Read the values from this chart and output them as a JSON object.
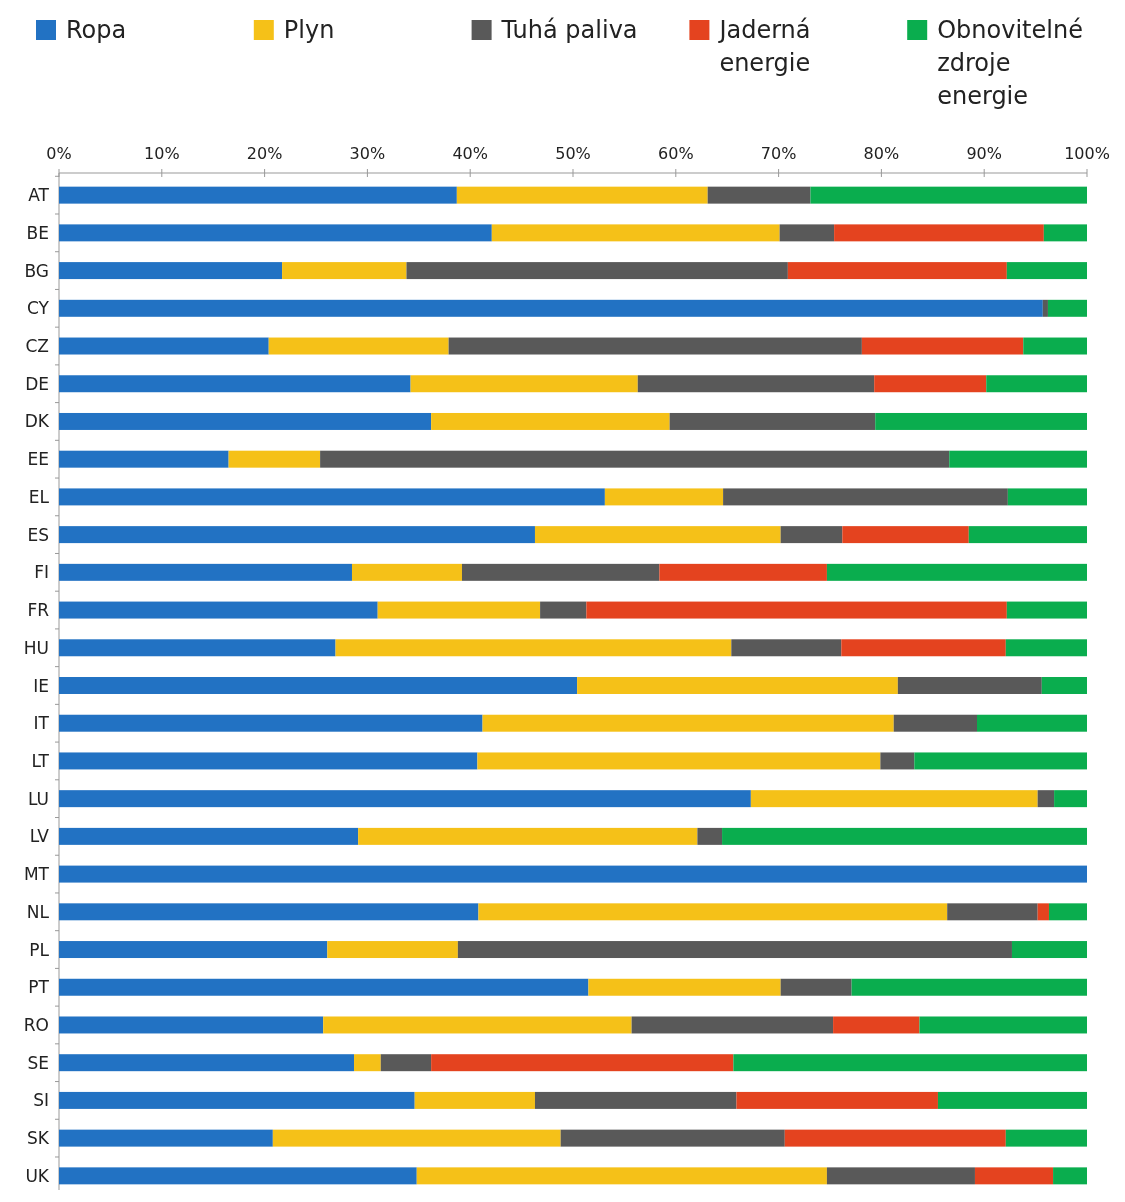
{
  "chart_data": {
    "type": "bar",
    "orientation": "horizontal",
    "stacked": true,
    "legend": "top",
    "grid": false,
    "categories": [
      "AT",
      "BE",
      "BG",
      "CY",
      "CZ",
      "DE",
      "DK",
      "EE",
      "EL",
      "ES",
      "FI",
      "FR",
      "HU",
      "IE",
      "IT",
      "LT",
      "LU",
      "LV",
      "MT",
      "NL",
      "PL",
      "PT",
      "RO",
      "SE",
      "SI",
      "SK",
      "UK"
    ],
    "xlim": [
      0,
      100
    ],
    "xticks": [
      {
        "value": 0,
        "label": "0%"
      },
      {
        "value": 10,
        "label": "10%"
      },
      {
        "value": 20,
        "label": "20%"
      },
      {
        "value": 30,
        "label": "30%"
      },
      {
        "value": 40,
        "label": "40%"
      },
      {
        "value": 50,
        "label": "50%"
      },
      {
        "value": 60,
        "label": "60%"
      },
      {
        "value": 70,
        "label": "70%"
      },
      {
        "value": 80,
        "label": "80%"
      },
      {
        "value": 90,
        "label": "90%"
      },
      {
        "value": 100,
        "label": "100%"
      }
    ],
    "series": [
      {
        "name": "Ropa",
        "color": "#2272c3",
        "values": [
          38.7,
          42.1,
          21.7,
          95.7,
          20.4,
          34.2,
          36.2,
          16.5,
          53.1,
          46.3,
          28.5,
          31.0,
          26.9,
          50.4,
          41.2,
          40.7,
          67.3,
          29.1,
          100,
          40.8,
          26.1,
          51.5,
          25.7,
          28.7,
          34.6,
          20.8,
          34.8
        ]
      },
      {
        "name": "Plyn",
        "color": "#f5c118",
        "values": [
          24.4,
          28.0,
          12.1,
          0,
          17.5,
          22.1,
          23.2,
          8.9,
          11.5,
          23.9,
          10.7,
          15.8,
          38.5,
          31.2,
          40.0,
          39.2,
          27.9,
          33.0,
          0,
          45.6,
          12.7,
          18.7,
          30.0,
          2.6,
          11.7,
          28.0,
          39.9
        ]
      },
      {
        "name": "Tuhá paliva",
        "color": "#595959",
        "values": [
          10.0,
          5.3,
          37.1,
          0.5,
          40.2,
          23.0,
          20.0,
          61.2,
          27.7,
          6.0,
          19.2,
          4.5,
          10.7,
          14.0,
          8.1,
          3.3,
          1.6,
          2.4,
          0,
          8.8,
          53.9,
          6.9,
          19.6,
          4.9,
          19.6,
          21.8,
          14.4
        ]
      },
      {
        "name": "Jaderná energie",
        "color": "#e4431f",
        "values": [
          0,
          20.4,
          21.3,
          0,
          15.7,
          10.9,
          0,
          0,
          0,
          12.3,
          16.3,
          40.9,
          16.0,
          0,
          0,
          0,
          0,
          0,
          0,
          1.1,
          0,
          0,
          8.4,
          29.4,
          19.6,
          21.5,
          7.6
        ]
      },
      {
        "name": "Obnovitelné zdroje energie",
        "color": "#0aad4e",
        "values": [
          26.9,
          4.2,
          7.8,
          3.8,
          6.2,
          9.8,
          20.6,
          13.4,
          7.7,
          11.5,
          25.3,
          7.8,
          7.9,
          4.4,
          10.7,
          16.8,
          3.2,
          35.5,
          0,
          3.7,
          7.3,
          22.9,
          16.3,
          34.4,
          14.5,
          7.9,
          3.3
        ]
      }
    ]
  }
}
